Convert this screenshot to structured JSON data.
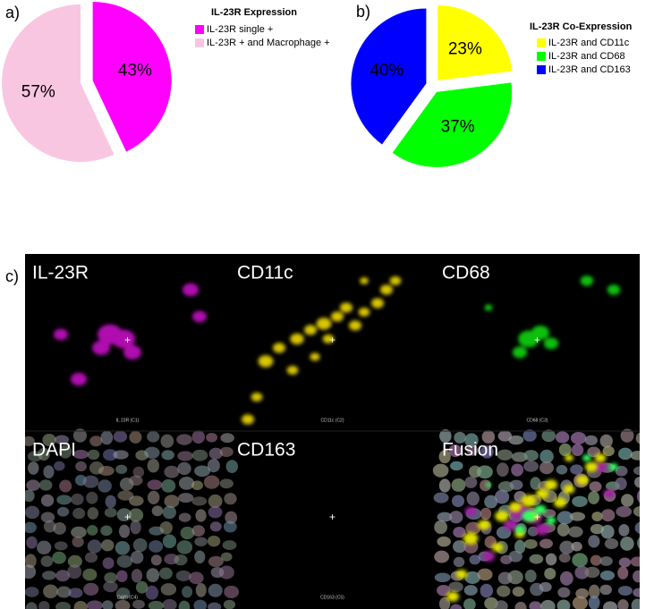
{
  "chart_data": [
    {
      "type": "pie",
      "panel_label": "a)",
      "title": "IL-23R Expression",
      "categories": [
        "IL-23R single +",
        "IL-23R + and Macrophage +"
      ],
      "values": [
        43,
        57
      ],
      "value_labels": [
        "43%",
        "57%"
      ],
      "colors": [
        "#ff00ff",
        "#f9c6e2"
      ]
    },
    {
      "type": "pie",
      "panel_label": "b)",
      "title": "IL-23R Co-Expression",
      "categories": [
        "IL-23R and CD11c",
        "IL-23R and CD68",
        "IL-23R and CD163"
      ],
      "values": [
        23,
        37,
        40
      ],
      "value_labels": [
        "23%",
        "37%",
        "40%"
      ],
      "colors": [
        "#ffff00",
        "#00ff00",
        "#0000ff"
      ]
    }
  ],
  "panels": {
    "label": "c)",
    "images": [
      {
        "title": "IL-23R",
        "caption": "IL 23R (C1)"
      },
      {
        "title": "CD11c",
        "caption": "CD11c (C2)"
      },
      {
        "title": "CD68",
        "caption": "CD68 (C3)"
      },
      {
        "title": "DAPI",
        "caption": "DAPI (C4)"
      },
      {
        "title": "CD163",
        "caption": "CD163 (C5)"
      },
      {
        "title": "Fusion"
      }
    ]
  }
}
